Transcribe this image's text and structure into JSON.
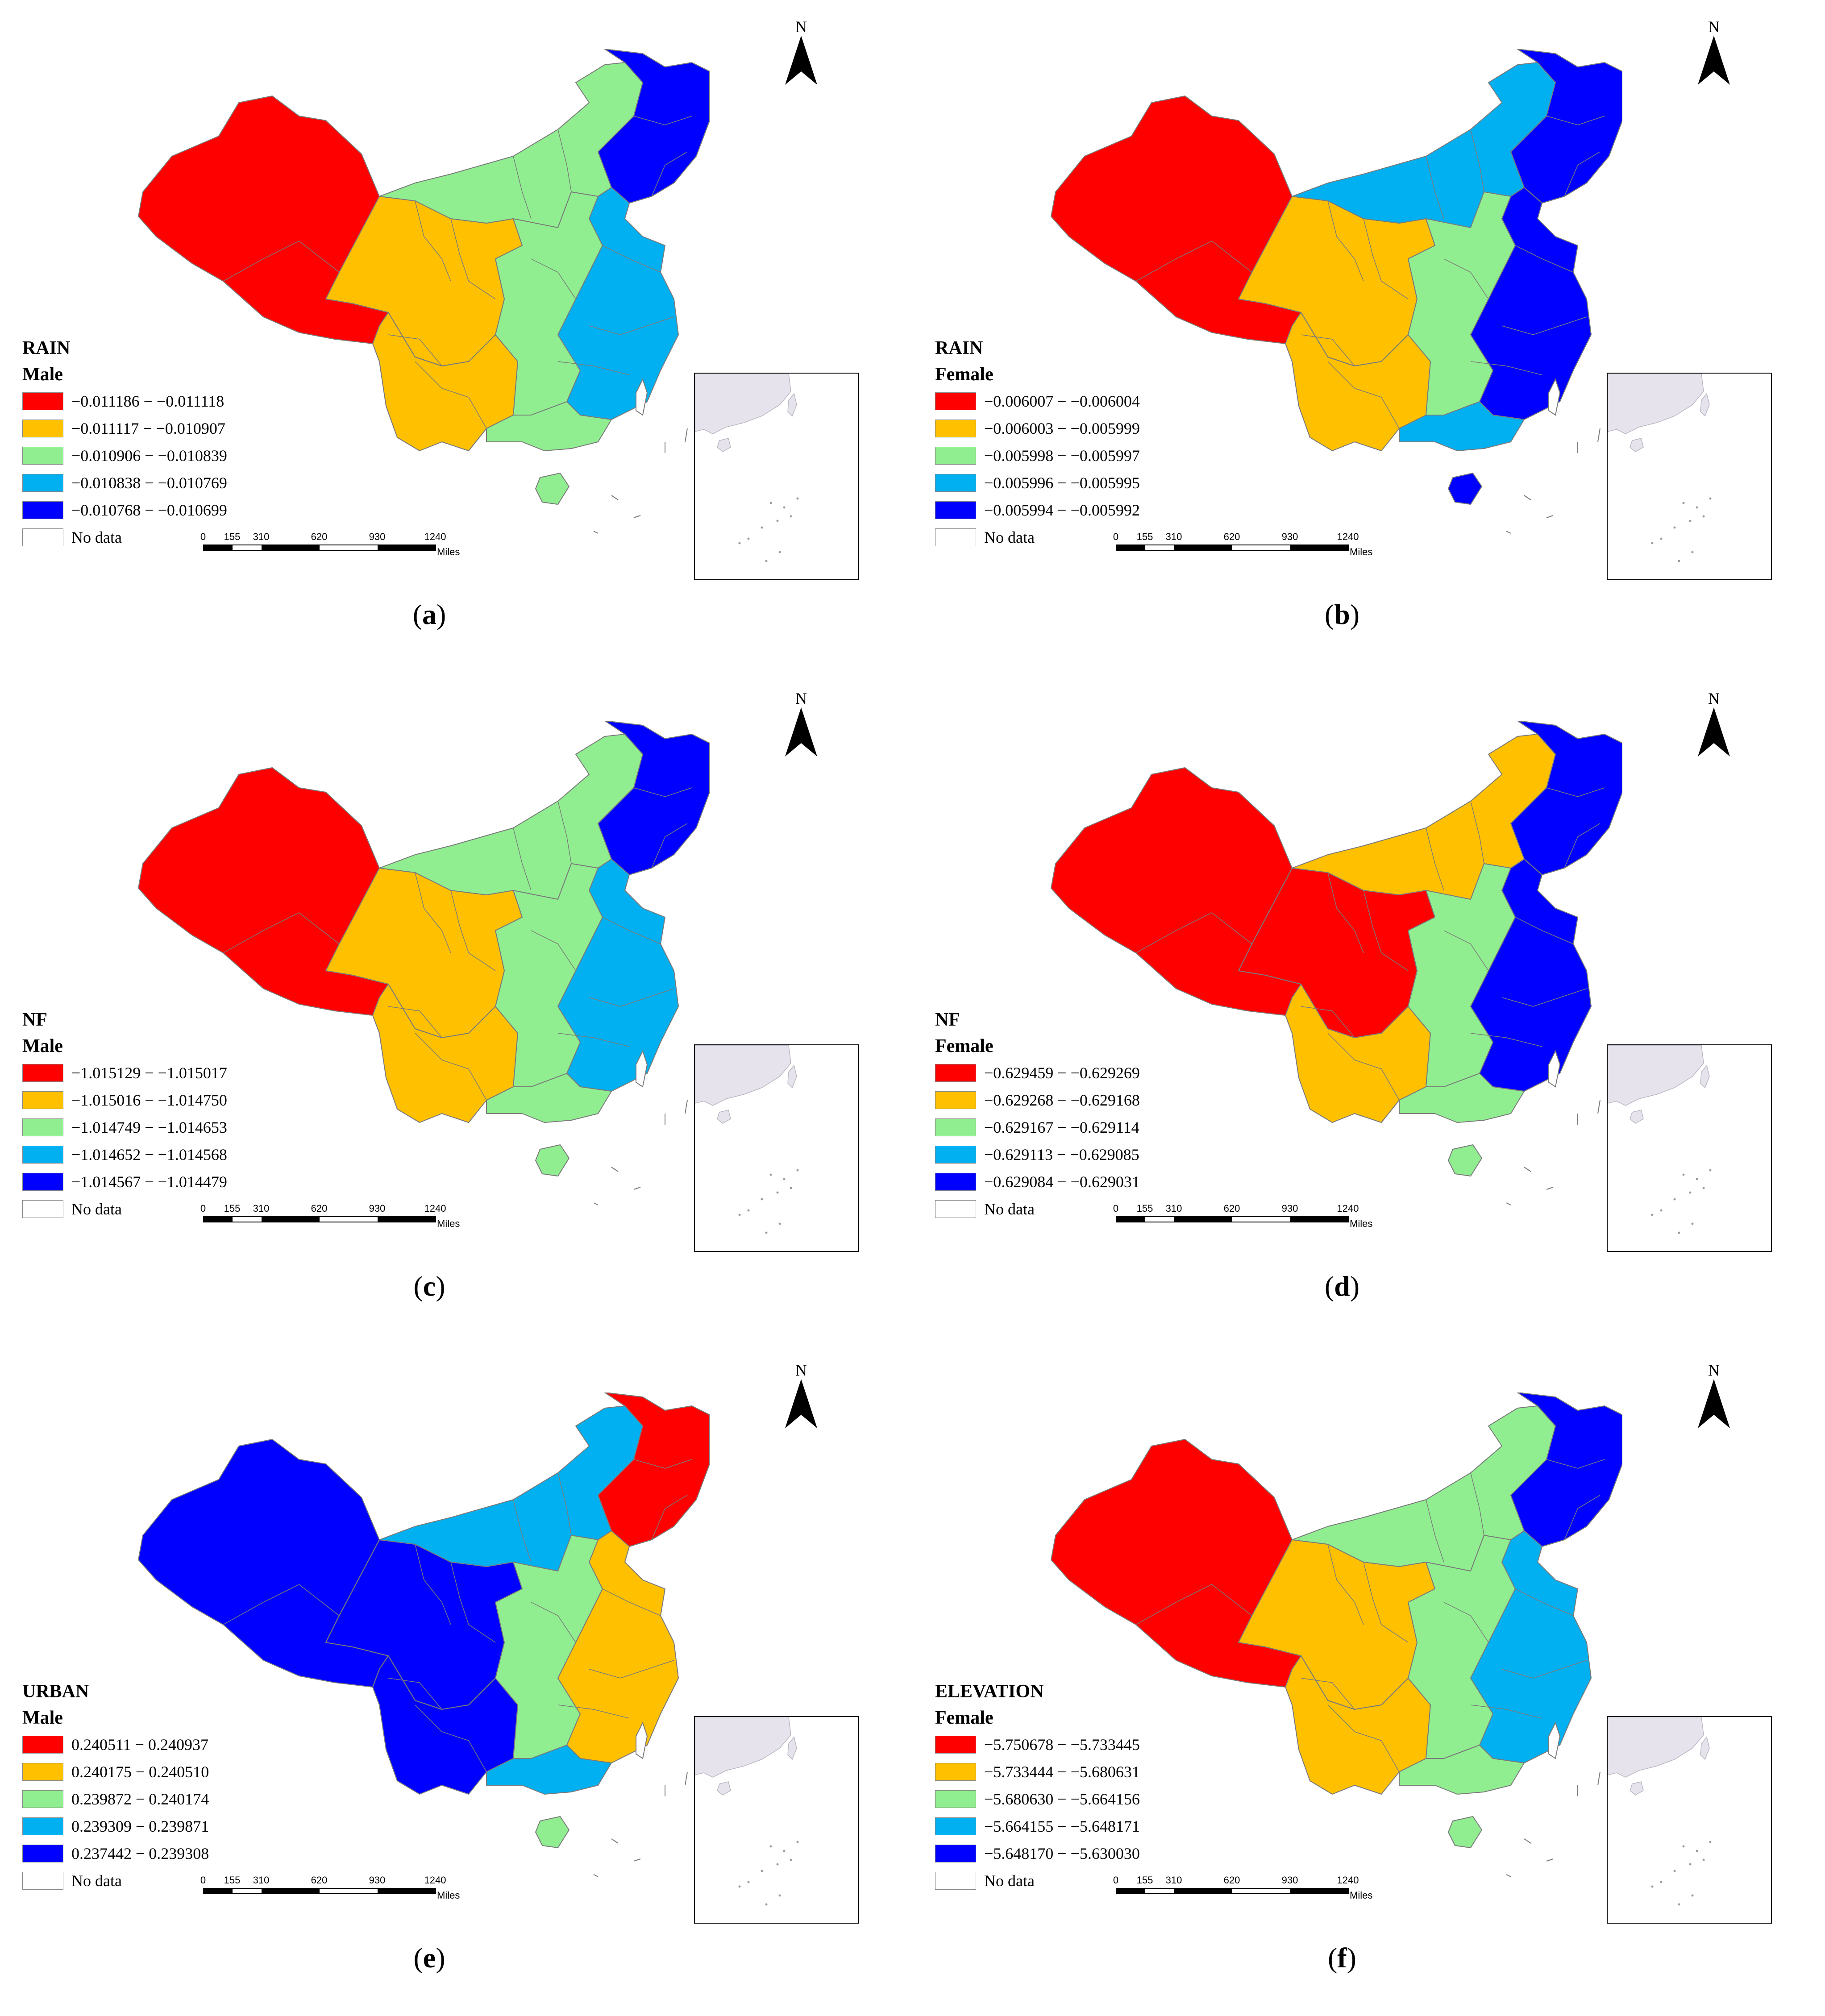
{
  "north_label": "N",
  "scale": {
    "ticks": [
      "0",
      "155",
      "310",
      "620",
      "930",
      "1240"
    ],
    "unit": "Miles"
  },
  "no_data_label": "No data",
  "colors": {
    "class1": "#ff0000",
    "class2": "#ffc000",
    "class3": "#90ee90",
    "class4": "#00b0f0",
    "class5": "#0000ff",
    "no_data": "#ffffff",
    "boundary": "#7a7a7a",
    "inset_land": "#e6e3ec"
  },
  "panels": [
    {
      "letter": "a",
      "variable": "RAIN",
      "group": "Male",
      "legend": [
        "−0.011186 − −0.011118",
        "−0.011117 − −0.010907",
        "−0.010906 − −0.010839",
        "−0.010838 − −0.010769",
        "−0.010768 − −0.010699"
      ],
      "region_classes": {
        "northwest": 1,
        "west_central": 2,
        "north": 3,
        "northeast": 5,
        "central_east": 3,
        "east_coast": 4,
        "south": 3,
        "hainan": 3,
        "southwest": 2
      }
    },
    {
      "letter": "b",
      "variable": "RAIN",
      "group": "Female",
      "legend": [
        "−0.006007 − −0.006004",
        "−0.006003 − −0.005999",
        "−0.005998 − −0.005997",
        "−0.005996 − −0.005995",
        "−0.005994 − −0.005992"
      ],
      "region_classes": {
        "northwest": 1,
        "west_central": 2,
        "north": 4,
        "northeast": 5,
        "central_east": 3,
        "east_coast": 5,
        "south": 4,
        "hainan": 5,
        "southwest": 2
      }
    },
    {
      "letter": "c",
      "variable": "NF",
      "group": "Male",
      "legend": [
        "−1.015129 − −1.015017",
        "−1.015016 − −1.014750",
        "−1.014749 − −1.014653",
        "−1.014652 − −1.014568",
        "−1.014567 − −1.014479"
      ],
      "region_classes": {
        "northwest": 1,
        "west_central": 2,
        "north": 3,
        "northeast": 5,
        "central_east": 3,
        "east_coast": 4,
        "south": 3,
        "hainan": 3,
        "southwest": 2
      }
    },
    {
      "letter": "d",
      "variable": "NF",
      "group": "Female",
      "legend": [
        "−0.629459 − −0.629269",
        "−0.629268 − −0.629168",
        "−0.629167 − −0.629114",
        "−0.629113 − −0.629085",
        "−0.629084 − −0.629031"
      ],
      "region_classes": {
        "northwest": 1,
        "west_central": 1,
        "north": 2,
        "northeast": 5,
        "central_east": 3,
        "east_coast": 5,
        "south": 3,
        "hainan": 3,
        "southwest": 2
      }
    },
    {
      "letter": "e",
      "variable": "URBAN",
      "group": "Male",
      "legend": [
        "0.240511 − 0.240937",
        "0.240175 − 0.240510",
        "0.239872 − 0.240174",
        "0.239309 − 0.239871",
        "0.237442 − 0.239308"
      ],
      "region_classes": {
        "northwest": 5,
        "west_central": 5,
        "north": 4,
        "northeast": 1,
        "central_east": 3,
        "east_coast": 2,
        "south": 4,
        "hainan": 3,
        "southwest": 5
      }
    },
    {
      "letter": "f",
      "variable": "ELEVATION",
      "group": "Female",
      "legend": [
        "−5.750678 − −5.733445",
        "−5.733444 − −5.680631",
        "−5.680630 − −5.664156",
        "−5.664155 − −5.648171",
        "−5.648170 − −5.630030"
      ],
      "region_classes": {
        "northwest": 1,
        "west_central": 2,
        "north": 3,
        "northeast": 5,
        "central_east": 3,
        "east_coast": 4,
        "south": 3,
        "hainan": 3,
        "southwest": 2
      }
    }
  ]
}
